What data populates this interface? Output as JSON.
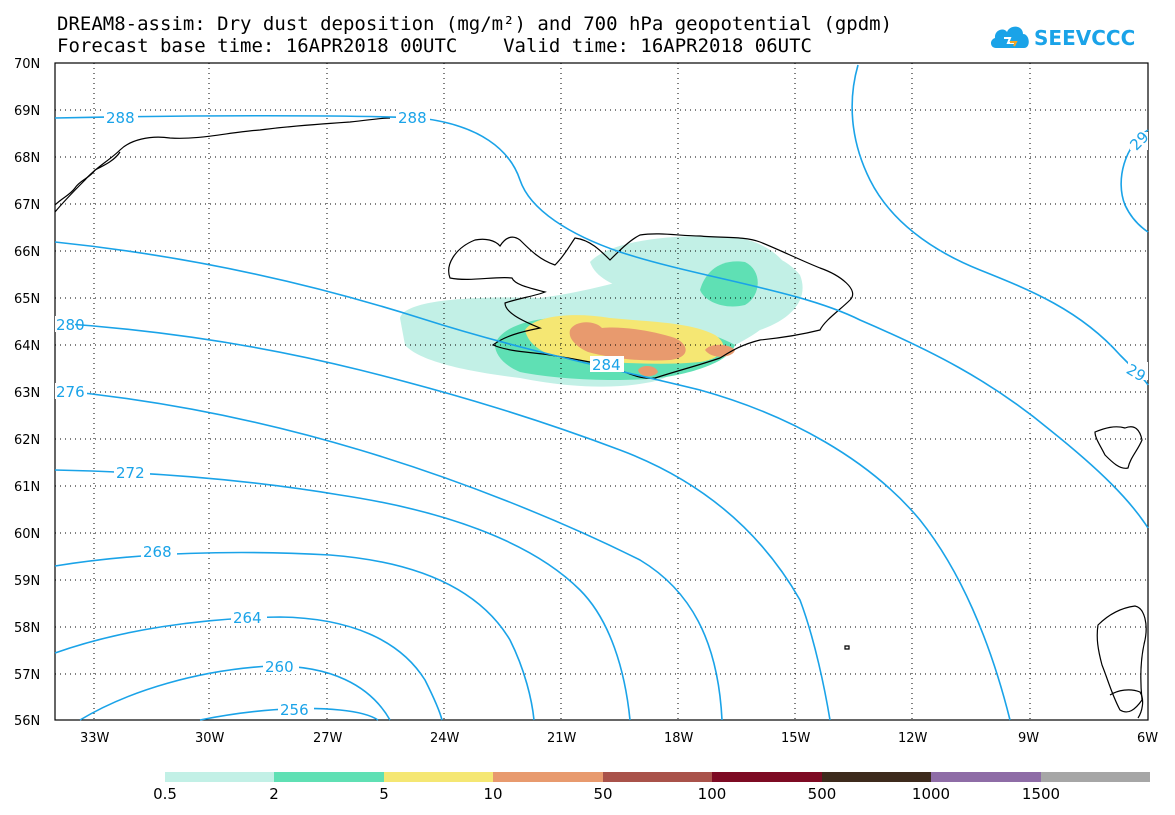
{
  "title": {
    "line1": "DREAM8-assim: Dry dust deposition (mg/m²) and 700 hPa geopotential (gpdm)",
    "line2": "Forecast base time: 16APR2018 00UTC    Valid time: 16APR2018 06UTC"
  },
  "logo": {
    "text": "SEEVCCC",
    "icon": "cloud-icon",
    "color": "#1aa3e8"
  },
  "map": {
    "lat_labels": [
      "70N",
      "69N",
      "68N",
      "67N",
      "66N",
      "65N",
      "64N",
      "63N",
      "62N",
      "61N",
      "60N",
      "59N",
      "58N",
      "57N",
      "56N"
    ],
    "lon_labels": [
      "33W",
      "30W",
      "27W",
      "24W",
      "21W",
      "18W",
      "15W",
      "12W",
      "9W",
      "6W"
    ],
    "contour_color": "#1aa3e8",
    "contour_labels": [
      "288",
      "288",
      "29",
      "280",
      "276",
      "284",
      "272",
      "268",
      "264",
      "260",
      "256",
      "29"
    ]
  },
  "legend": {
    "colors": [
      "#c2f0e6",
      "#5fe0b4",
      "#f5e773",
      "#e89a6e",
      "#a9524a",
      "#7d0a23",
      "#3d2a1c",
      "#8e6ca6",
      "#a6a6a6"
    ],
    "labels": [
      "0.5",
      "2",
      "5",
      "10",
      "50",
      "100",
      "500",
      "1000",
      "1500"
    ]
  }
}
